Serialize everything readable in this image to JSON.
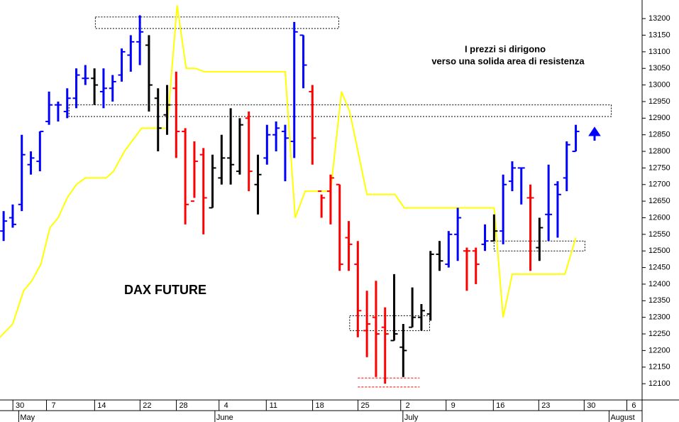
{
  "chart_data": {
    "type": "ohlc",
    "title": "DAX FUTURE",
    "annotation": [
      "I prezzi si dirigono",
      "verso una solida area di resistenza"
    ],
    "trend_colors": {
      "up": "#0000ff",
      "down": "#ff0000",
      "neutral": "#000000"
    },
    "ylim": [
      12051,
      13256
    ],
    "xlim": [
      -0.4,
      70.3
    ],
    "yticks": [
      12100,
      12150,
      12200,
      12250,
      12300,
      12350,
      12400,
      12450,
      12500,
      12550,
      12600,
      12650,
      12700,
      12750,
      12800,
      12850,
      12900,
      12950,
      13000,
      13050,
      13100,
      13150,
      13200
    ],
    "xticks": [
      {
        "value": 1.8,
        "label": "30"
      },
      {
        "value": 5.5,
        "label": "7"
      },
      {
        "value": 10.8,
        "label": "14"
      },
      {
        "value": 15.8,
        "label": "22"
      },
      {
        "value": 19.8,
        "label": "28"
      },
      {
        "value": 24.5,
        "label": "4"
      },
      {
        "value": 29.7,
        "label": "11"
      },
      {
        "value": 34.8,
        "label": "18"
      },
      {
        "value": 39.8,
        "label": "25"
      },
      {
        "value": 44.5,
        "label": "2"
      },
      {
        "value": 49.5,
        "label": "9"
      },
      {
        "value": 54.7,
        "label": "16"
      },
      {
        "value": 59.7,
        "label": "23"
      },
      {
        "value": 64.7,
        "label": "30"
      },
      {
        "value": 69.4,
        "label": "6"
      }
    ],
    "months": [
      {
        "value": 2.6,
        "label": "May"
      },
      {
        "value": 24.2,
        "label": "June"
      },
      {
        "value": 44.9,
        "label": "July"
      },
      {
        "value": 67.6,
        "label": "August"
      }
    ],
    "bars": [
      {
        "open": 12560,
        "high": 12620,
        "low": 12530,
        "close": 12590,
        "trend": "up"
      },
      {
        "open": 12600,
        "high": 12640,
        "low": 12570,
        "close": 12580,
        "trend": "up"
      },
      {
        "open": 12640,
        "high": 12850,
        "low": 12620,
        "close": 12790,
        "trend": "up"
      },
      {
        "open": 12760,
        "high": 12800,
        "low": 12730,
        "close": 12780,
        "trend": "up"
      },
      {
        "open": 12770,
        "high": 12860,
        "low": 12740,
        "close": 12860,
        "trend": "up"
      },
      {
        "open": 12890,
        "high": 12980,
        "low": 12880,
        "close": 12940,
        "trend": "up"
      },
      {
        "open": 12940,
        "high": 12950,
        "low": 12890,
        "close": 12940,
        "trend": "up"
      },
      {
        "open": 12920,
        "high": 12990,
        "low": 12900,
        "close": 12960,
        "trend": "up"
      },
      {
        "open": 12960,
        "high": 13050,
        "low": 12930,
        "close": 13030,
        "trend": "up"
      },
      {
        "open": 13020,
        "high": 13060,
        "low": 13000,
        "close": 13020,
        "trend": "up"
      },
      {
        "open": 13020,
        "high": 13050,
        "low": 12940,
        "close": 13000,
        "trend": "neutral"
      },
      {
        "open": 12980,
        "high": 13050,
        "low": 12930,
        "close": 12990,
        "trend": "up"
      },
      {
        "open": 12990,
        "high": 13030,
        "low": 12950,
        "close": 13010,
        "trend": "up"
      },
      {
        "open": 13030,
        "high": 13110,
        "low": 13010,
        "close": 13100,
        "trend": "up"
      },
      {
        "open": 13090,
        "high": 13150,
        "low": 13040,
        "close": 13130,
        "trend": "up"
      },
      {
        "open": 13130,
        "high": 13210,
        "low": 13060,
        "close": 13160,
        "trend": "up"
      },
      {
        "open": 13120,
        "high": 13150,
        "low": 12920,
        "close": 13000,
        "trend": "neutral"
      },
      {
        "open": 12960,
        "high": 12990,
        "low": 12800,
        "close": 12870,
        "trend": "neutral"
      },
      {
        "open": 12910,
        "high": 13000,
        "low": 12850,
        "close": 12940,
        "trend": "neutral"
      },
      {
        "open": 12990,
        "high": 13040,
        "low": 12780,
        "close": 12860,
        "trend": "down"
      },
      {
        "open": 12860,
        "high": 12870,
        "low": 12580,
        "close": 12640,
        "trend": "down"
      },
      {
        "open": 12650,
        "high": 12830,
        "low": 12660,
        "close": 12770,
        "trend": "down"
      },
      {
        "open": 12790,
        "high": 12810,
        "low": 12550,
        "close": 12660,
        "trend": "down"
      },
      {
        "open": 12630,
        "high": 12790,
        "low": 12630,
        "close": 12750,
        "trend": "neutral"
      },
      {
        "open": 12720,
        "high": 12850,
        "low": 12700,
        "close": 12780,
        "trend": "neutral"
      },
      {
        "open": 12780,
        "high": 12930,
        "low": 12700,
        "close": 12760,
        "trend": "neutral"
      },
      {
        "open": 12740,
        "high": 12900,
        "low": 12730,
        "close": 12880,
        "trend": "neutral"
      },
      {
        "open": 12900,
        "high": 12920,
        "low": 12680,
        "close": 12740,
        "trend": "down"
      },
      {
        "open": 12700,
        "high": 12790,
        "low": 12610,
        "close": 12730,
        "trend": "neutral"
      },
      {
        "open": 12780,
        "high": 12880,
        "low": 12760,
        "close": 12850,
        "trend": "up"
      },
      {
        "open": 12850,
        "high": 12890,
        "low": 12800,
        "close": 12870,
        "trend": "up"
      },
      {
        "open": 12860,
        "high": 12880,
        "low": 12710,
        "close": 12840,
        "trend": "up"
      },
      {
        "open": 12830,
        "high": 13190,
        "low": 12780,
        "close": 13160,
        "trend": "up"
      },
      {
        "open": 13150,
        "high": 13150,
        "low": 12990,
        "close": 13060,
        "trend": "up"
      },
      {
        "open": 12980,
        "high": 13000,
        "low": 12760,
        "close": 12840,
        "trend": "down"
      },
      {
        "open": 12680,
        "high": 12670,
        "low": 12600,
        "close": 12660,
        "trend": "down"
      },
      {
        "open": 12680,
        "high": 12730,
        "low": 12580,
        "close": 12720,
        "trend": "down"
      },
      {
        "open": 12700,
        "high": 12700,
        "low": 12440,
        "close": 12460,
        "trend": "down"
      },
      {
        "open": 12540,
        "high": 12590,
        "low": 12440,
        "close": 12520,
        "trend": "down"
      },
      {
        "open": 12460,
        "high": 12530,
        "low": 12240,
        "close": 12320,
        "trend": "down"
      },
      {
        "open": 12260,
        "high": 12380,
        "low": 12180,
        "close": 12280,
        "trend": "down"
      },
      {
        "open": 12300,
        "high": 12410,
        "low": 12120,
        "close": 12250,
        "trend": "down"
      },
      {
        "open": 12270,
        "high": 12330,
        "low": 12100,
        "close": 12250,
        "trend": "down"
      },
      {
        "open": 12230,
        "high": 12430,
        "low": 12230,
        "close": 12250,
        "trend": "neutral"
      },
      {
        "open": 12210,
        "high": 12280,
        "low": 12120,
        "close": 12200,
        "trend": "neutral"
      },
      {
        "open": 12270,
        "high": 12390,
        "low": 12270,
        "close": 12300,
        "trend": "neutral"
      },
      {
        "open": 12300,
        "high": 12340,
        "low": 12260,
        "close": 12320,
        "trend": "neutral"
      },
      {
        "open": 12310,
        "high": 12500,
        "low": 12290,
        "close": 12490,
        "trend": "neutral"
      },
      {
        "open": 12490,
        "high": 12530,
        "low": 12440,
        "close": 12470,
        "trend": "neutral"
      },
      {
        "open": 12460,
        "high": 12560,
        "low": 12450,
        "close": 12550,
        "trend": "up"
      },
      {
        "open": 12550,
        "high": 12630,
        "low": 12470,
        "close": 12600,
        "trend": "up"
      },
      {
        "open": 12500,
        "high": 12510,
        "low": 12380,
        "close": 12500,
        "trend": "down"
      },
      {
        "open": 12500,
        "high": 12510,
        "low": 12400,
        "close": 12460,
        "trend": "down"
      },
      {
        "open": 12520,
        "high": 12580,
        "low": 12500,
        "close": 12530,
        "trend": "up"
      },
      {
        "open": 12530,
        "high": 12610,
        "low": 12530,
        "close": 12560,
        "trend": "neutral"
      },
      {
        "open": 12560,
        "high": 12730,
        "low": 12520,
        "close": 12700,
        "trend": "up"
      },
      {
        "open": 12710,
        "high": 12770,
        "low": 12680,
        "close": 12750,
        "trend": "up"
      },
      {
        "open": 12750,
        "high": 12750,
        "low": 12640,
        "close": 12750,
        "trend": "up"
      },
      {
        "open": 12660,
        "high": 12700,
        "low": 12440,
        "close": 12660,
        "trend": "down"
      },
      {
        "open": 12510,
        "high": 12600,
        "low": 12470,
        "close": 12570,
        "trend": "neutral"
      },
      {
        "open": 12610,
        "high": 12760,
        "low": 12530,
        "close": 12610,
        "trend": "up"
      },
      {
        "open": 12700,
        "high": 12710,
        "low": 12540,
        "close": 12670,
        "trend": "up"
      },
      {
        "open": 12720,
        "high": 12830,
        "low": 12680,
        "close": 12820,
        "trend": "up"
      },
      {
        "open": 12800,
        "high": 12880,
        "low": 12800,
        "close": 12860,
        "trend": "up"
      }
    ],
    "stop_line": {
      "color": "#ffff00",
      "x": [
        -0.4,
        1.0,
        2.2,
        3.1,
        4.1,
        5.1,
        6.0,
        7.0,
        8.0,
        9.0,
        11.3,
        12.1,
        13.3,
        15.2,
        18.0,
        19.1,
        20.1,
        21.1,
        22.1,
        31.0,
        32.1,
        33.2,
        36.0,
        37.2,
        38.1,
        40.0,
        43.1,
        44.1,
        54.0,
        55.0,
        56.0,
        61.8,
        63.0
      ],
      "values": [
        12240,
        12280,
        12380,
        12410,
        12460,
        12570,
        12600,
        12660,
        12700,
        12720,
        12720,
        12740,
        12800,
        12870,
        12870,
        13240,
        13050,
        13050,
        13040,
        13040,
        12600,
        12680,
        12680,
        12980,
        12920,
        12670,
        12670,
        12630,
        12630,
        12300,
        12430,
        12430,
        12540
      ]
    },
    "zones": [
      {
        "x": [
          10.1,
          36.9
        ],
        "range": [
          13170,
          13205
        ]
      },
      {
        "x": [
          7.2,
          66.9
        ],
        "range": [
          12905,
          12940
        ]
      },
      {
        "x": [
          38.1,
          46.9
        ],
        "range": [
          12260,
          12305
        ]
      },
      {
        "x": [
          54.0,
          64.0
        ],
        "range": [
          12500,
          12530
        ]
      }
    ],
    "support_lines": {
      "color": "#ff0000",
      "x": [
        39.0,
        45.8
      ],
      "values": [
        12117,
        12090
      ]
    }
  }
}
